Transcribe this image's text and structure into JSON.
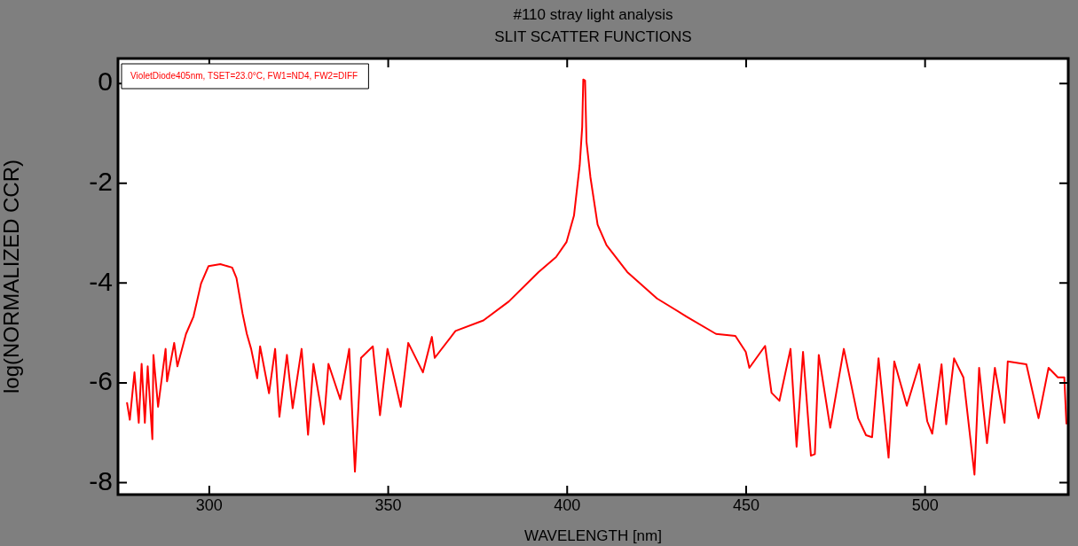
{
  "chart_data": {
    "type": "line",
    "title": "#110 stray light analysis",
    "subtitle": "SLIT SCATTER FUNCTIONS",
    "xlabel": "WAVELENGTH [nm]",
    "ylabel": "log(NORMALIZED CCR)",
    "xlim": [
      274.5,
      540
    ],
    "ylim": [
      -8.24,
      0.5
    ],
    "xticks": [
      300,
      350,
      400,
      450,
      500
    ],
    "yticks": [
      -8,
      -6,
      -4,
      -2,
      0
    ],
    "grid": false,
    "legend": "top left",
    "marker": "none",
    "line_style": "solid",
    "series": [
      {
        "name": "VioletDiode405nm, TSET=23.0°C, FW1=ND4, FW2=DIFF",
        "color": "#ff0000",
        "x": [
          277.0,
          277.8,
          279.1,
          280.3,
          281.1,
          282.0,
          282.8,
          284.1,
          284.4,
          285.7,
          287.8,
          288.2,
          290.2,
          291.1,
          293.5,
          295.6,
          297.7,
          299.8,
          303.1,
          306.4,
          307.6,
          309.3,
          310.5,
          311.7,
          313.4,
          314.2,
          316.7,
          318.4,
          319.6,
          321.7,
          323.3,
          325.8,
          327.6,
          329.1,
          332.0,
          333.3,
          336.6,
          339.1,
          340.7,
          342.4,
          345.7,
          347.7,
          349.8,
          353.5,
          355.6,
          359.7,
          362.2,
          363.0,
          368.8,
          376.6,
          383.7,
          392.0,
          396.9,
          399.8,
          401.9,
          403.5,
          404.2,
          404.5,
          405.0,
          405.4,
          406.5,
          408.5,
          411.0,
          416.8,
          425.1,
          433.3,
          441.6,
          447.0,
          449.9,
          450.9,
          455.3,
          457.1,
          459.3,
          462.4,
          464.1,
          465.9,
          468.1,
          469.2,
          470.3,
          473.5,
          477.3,
          481.3,
          483.5,
          485.2,
          487.0,
          489.8,
          491.4,
          494.9,
          498.4,
          500.6,
          502.0,
          504.6,
          505.9,
          508.1,
          510.7,
          513.8,
          515.1,
          517.3,
          519.5,
          522.2,
          523.1,
          528.3,
          531.7,
          534.5,
          537.1,
          538.9,
          539.5
        ],
        "values": [
          -6.39,
          -6.74,
          -5.79,
          -6.8,
          -5.62,
          -6.8,
          -5.67,
          -7.13,
          -5.44,
          -6.48,
          -5.32,
          -5.97,
          -5.2,
          -5.67,
          -5.02,
          -4.67,
          -4.01,
          -3.66,
          -3.62,
          -3.69,
          -3.9,
          -4.61,
          -5.02,
          -5.32,
          -5.91,
          -5.27,
          -6.21,
          -5.32,
          -6.68,
          -5.44,
          -6.51,
          -5.32,
          -7.04,
          -5.62,
          -6.83,
          -5.62,
          -6.33,
          -5.32,
          -7.78,
          -5.5,
          -5.27,
          -6.65,
          -5.32,
          -6.48,
          -5.2,
          -5.79,
          -5.08,
          -5.5,
          -4.96,
          -4.75,
          -4.37,
          -3.78,
          -3.48,
          -3.18,
          -2.65,
          -1.64,
          -0.87,
          0.08,
          0.06,
          -1.17,
          -1.88,
          -2.83,
          -3.24,
          -3.78,
          -4.31,
          -4.67,
          -5.02,
          -5.06,
          -5.38,
          -5.7,
          -5.26,
          -6.2,
          -6.36,
          -5.32,
          -7.28,
          -5.38,
          -7.46,
          -7.43,
          -5.44,
          -6.9,
          -5.32,
          -6.71,
          -7.05,
          -7.09,
          -5.51,
          -7.5,
          -5.57,
          -6.46,
          -5.63,
          -6.77,
          -7.02,
          -5.63,
          -6.83,
          -5.51,
          -5.89,
          -7.84,
          -5.7,
          -7.21,
          -5.7,
          -6.8,
          -5.57,
          -5.63,
          -6.71,
          -5.7,
          -5.89,
          -5.89,
          -6.83
        ]
      }
    ]
  }
}
